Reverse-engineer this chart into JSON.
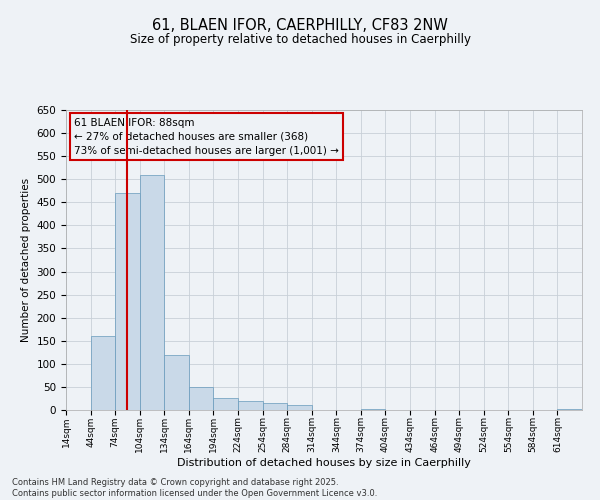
{
  "title": "61, BLAEN IFOR, CAERPHILLY, CF83 2NW",
  "subtitle": "Size of property relative to detached houses in Caerphilly",
  "xlabel": "Distribution of detached houses by size in Caerphilly",
  "ylabel": "Number of detached properties",
  "footer_line1": "Contains HM Land Registry data © Crown copyright and database right 2025.",
  "footer_line2": "Contains public sector information licensed under the Open Government Licence v3.0.",
  "annotation_title": "61 BLAEN IFOR: 88sqm",
  "annotation_line1": "← 27% of detached houses are smaller (368)",
  "annotation_line2": "73% of semi-detached houses are larger (1,001) →",
  "property_size": 88,
  "bin_edges": [
    14,
    44,
    74,
    104,
    134,
    164,
    194,
    224,
    254,
    284,
    314,
    344,
    374,
    404,
    434,
    464,
    494,
    524,
    554,
    584,
    614
  ],
  "bin_counts": [
    0,
    160,
    470,
    510,
    120,
    50,
    25,
    20,
    15,
    10,
    0,
    0,
    2,
    0,
    0,
    0,
    0,
    0,
    0,
    0,
    2
  ],
  "bar_color": "#c9d9e8",
  "bar_edge_color": "#6699bb",
  "vline_color": "#cc0000",
  "annotation_box_color": "#cc0000",
  "grid_color": "#c8d0d8",
  "background_color": "#eef2f6",
  "ylim": [
    0,
    650
  ],
  "yticks": [
    0,
    50,
    100,
    150,
    200,
    250,
    300,
    350,
    400,
    450,
    500,
    550,
    600,
    650
  ]
}
